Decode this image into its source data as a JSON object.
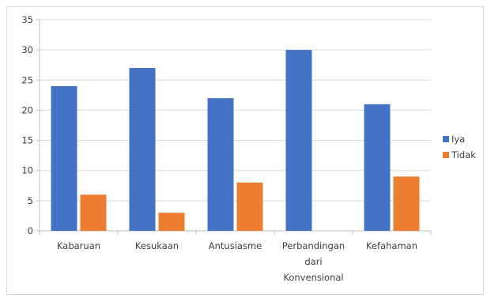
{
  "chart_data": {
    "type": "bar",
    "categories": [
      [
        "Kabaruan"
      ],
      [
        "Kesukaan"
      ],
      [
        "Antusiasme"
      ],
      [
        "Perbandingan",
        "dari",
        "Konvensional"
      ],
      [
        "Kefahaman"
      ]
    ],
    "series": [
      {
        "name": "Iya",
        "color": "#4472c4",
        "values": [
          24,
          27,
          22,
          30,
          21
        ]
      },
      {
        "name": "Tidak",
        "color": "#ed7d31",
        "values": [
          6,
          3,
          8,
          0,
          9
        ]
      }
    ],
    "yticks": [
      0,
      5,
      10,
      15,
      20,
      25,
      30,
      35
    ],
    "ylim": [
      0,
      35
    ],
    "grid": true,
    "legend_position": "right"
  }
}
